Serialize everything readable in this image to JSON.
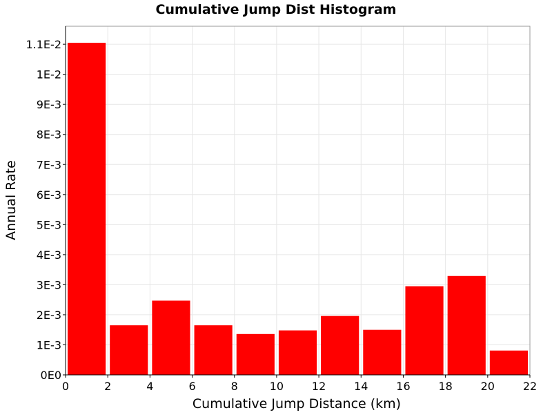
{
  "chart_data": {
    "type": "bar",
    "title": "Cumulative Jump Dist Histogram",
    "xlabel": "Cumulative Jump Distance (km)",
    "ylabel": "Annual Rate",
    "xlim": [
      0,
      22
    ],
    "ylim": [
      0,
      0.0116
    ],
    "x_ticks": [
      {
        "value": 0,
        "label": "0"
      },
      {
        "value": 2,
        "label": "2"
      },
      {
        "value": 4,
        "label": "4"
      },
      {
        "value": 6,
        "label": "6"
      },
      {
        "value": 8,
        "label": "8"
      },
      {
        "value": 10,
        "label": "10"
      },
      {
        "value": 12,
        "label": "12"
      },
      {
        "value": 14,
        "label": "14"
      },
      {
        "value": 16,
        "label": "16"
      },
      {
        "value": 18,
        "label": "18"
      },
      {
        "value": 20,
        "label": "20"
      },
      {
        "value": 22,
        "label": "22"
      }
    ],
    "y_ticks": [
      {
        "value": 0,
        "label": "0E0"
      },
      {
        "value": 0.001,
        "label": "1E-3"
      },
      {
        "value": 0.002,
        "label": "2E-3"
      },
      {
        "value": 0.003,
        "label": "3E-3"
      },
      {
        "value": 0.004,
        "label": "4E-3"
      },
      {
        "value": 0.005,
        "label": "5E-3"
      },
      {
        "value": 0.006,
        "label": "6E-3"
      },
      {
        "value": 0.007,
        "label": "7E-3"
      },
      {
        "value": 0.008,
        "label": "8E-3"
      },
      {
        "value": 0.009,
        "label": "9E-3"
      },
      {
        "value": 0.01,
        "label": "1E-2"
      },
      {
        "value": 0.011,
        "label": "1.1E-2"
      }
    ],
    "grid": true,
    "bar_color": "#ff0000",
    "bins": [
      {
        "x0": 0,
        "x1": 2,
        "value": 0.01105
      },
      {
        "x0": 2,
        "x1": 4,
        "value": 0.00165
      },
      {
        "x0": 4,
        "x1": 6,
        "value": 0.00247
      },
      {
        "x0": 6,
        "x1": 8,
        "value": 0.00165
      },
      {
        "x0": 8,
        "x1": 10,
        "value": 0.00136
      },
      {
        "x0": 10,
        "x1": 12,
        "value": 0.00148
      },
      {
        "x0": 12,
        "x1": 14,
        "value": 0.00196
      },
      {
        "x0": 14,
        "x1": 16,
        "value": 0.0015
      },
      {
        "x0": 16,
        "x1": 18,
        "value": 0.00295
      },
      {
        "x0": 18,
        "x1": 20,
        "value": 0.00329
      },
      {
        "x0": 20,
        "x1": 22,
        "value": 0.00081
      }
    ]
  }
}
